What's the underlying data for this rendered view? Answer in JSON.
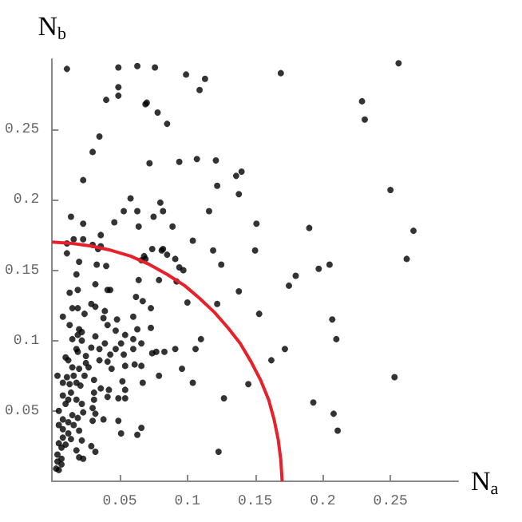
{
  "chart_data": {
    "type": "scatter",
    "xlabel": "N$_{a}$",
    "ylabel": "N$_{b}$",
    "xlim": [
      0,
      0.3
    ],
    "ylim": [
      0,
      0.3
    ],
    "xticks": [
      0.05,
      0.1,
      0.15,
      0.2,
      0.25
    ],
    "yticks": [
      0.05,
      0.1,
      0.15,
      0.2,
      0.25
    ],
    "grid": false,
    "marker": "circle",
    "series": [
      {
        "color": "#000000",
        "x": [
          0.011,
          0.049,
          0.063,
          0.076,
          0.099,
          0.113,
          0.109,
          0.049,
          0.049,
          0.04,
          0.07,
          0.069,
          0.078,
          0.085,
          0.035,
          0.03,
          0.072,
          0.094,
          0.107,
          0.121,
          0.023,
          0.136,
          0.14,
          0.122,
          0.138,
          0.058,
          0.08,
          0.082,
          0.053,
          0.063,
          0.116,
          0.014,
          0.075,
          0.046,
          0.023,
          0.151,
          0.064,
          0.089,
          0.036,
          0.016,
          0.023,
          0.104,
          0.011,
          0.03,
          0.036,
          0.119,
          0.15,
          0.074,
          0.081,
          0.034,
          0.011,
          0.085,
          0.068,
          0.069,
          0.066,
          0.091,
          0.125,
          0.02,
          0.094,
          0.033,
          0.04,
          0.169,
          0.256,
          0.229,
          0.231,
          0.25,
          0.19,
          0.267,
          0.197,
          0.205,
          0.262,
          0.082,
          0.097,
          0.092,
          0.18,
          0.175,
          0.138,
          0.1,
          0.122,
          0.153,
          0.207,
          0.21,
          0.11,
          0.106,
          0.091,
          0.083,
          0.077,
          0.172,
          0.162,
          0.096,
          0.079,
          0.104,
          0.145,
          0.253,
          0.127,
          0.193,
          0.208,
          0.211,
          0.123,
          0.018,
          0.079,
          0.064,
          0.032,
          0.041,
          0.043,
          0.013,
          0.019,
          0.062,
          0.067,
          0.029,
          0.032,
          0.073,
          0.015,
          0.019,
          0.039,
          0.024,
          0.008,
          0.048,
          0.038,
          0.06,
          0.041,
          0.013,
          0.073,
          0.063,
          0.02,
          0.047,
          0.019,
          0.022,
          0.054,
          0.032,
          0.015,
          0.022,
          0.039,
          0.06,
          0.051,
          0.066,
          0.029,
          0.035,
          0.018,
          0.047,
          0.06,
          0.019,
          0.074,
          0.01,
          0.025,
          0.043,
          0.053,
          0.012,
          0.035,
          0.041,
          0.025,
          0.054,
          0.061,
          0.066,
          0.027,
          0.015,
          0.044,
          0.02,
          0.004,
          0.011,
          0.016,
          0.024,
          0.031,
          0.052,
          0.008,
          0.013,
          0.018,
          0.021,
          0.036,
          0.042,
          0.031,
          0.054,
          0.067,
          0.014,
          0.008,
          0.041,
          0.018,
          0.012,
          0.031,
          0.049,
          0.054,
          0.01,
          0.022,
          0.03,
          0.005,
          0.023,
          0.015,
          0.032,
          0.008,
          0.019,
          0.038,
          0.049,
          0.012,
          0.03,
          0.005,
          0.016,
          0.008,
          0.066,
          0.051,
          0.063,
          0.02,
          0.012,
          0.008,
          0.014,
          0.022,
          0.005,
          0.01,
          0.029,
          0.007,
          0.032,
          0.018,
          0.004,
          0.02,
          0.007,
          0.023,
          0.004,
          0.007,
          0.003,
          0.005
        ],
        "values": [
          0.293,
          0.294,
          0.295,
          0.294,
          0.289,
          0.286,
          0.278,
          0.28,
          0.274,
          0.271,
          0.269,
          0.268,
          0.262,
          0.254,
          0.245,
          0.234,
          0.226,
          0.227,
          0.229,
          0.228,
          0.214,
          0.217,
          0.22,
          0.21,
          0.204,
          0.201,
          0.198,
          0.192,
          0.192,
          0.192,
          0.192,
          0.188,
          0.188,
          0.184,
          0.183,
          0.183,
          0.181,
          0.181,
          0.175,
          0.172,
          0.172,
          0.171,
          0.169,
          0.168,
          0.167,
          0.164,
          0.164,
          0.165,
          0.164,
          0.165,
          0.162,
          0.161,
          0.16,
          0.158,
          0.157,
          0.158,
          0.154,
          0.156,
          0.152,
          0.154,
          0.153,
          0.29,
          0.297,
          0.27,
          0.257,
          0.207,
          0.18,
          0.178,
          0.151,
          0.154,
          0.158,
          0.165,
          0.15,
          0.142,
          0.146,
          0.139,
          0.135,
          0.127,
          0.126,
          0.119,
          0.115,
          0.101,
          0.101,
          0.094,
          0.094,
          0.092,
          0.092,
          0.094,
          0.086,
          0.08,
          0.075,
          0.07,
          0.069,
          0.074,
          0.059,
          0.056,
          0.048,
          0.036,
          0.021,
          0.147,
          0.143,
          0.143,
          0.14,
          0.136,
          0.136,
          0.134,
          0.136,
          0.131,
          0.128,
          0.126,
          0.124,
          0.123,
          0.123,
          0.123,
          0.121,
          0.119,
          0.117,
          0.115,
          0.116,
          0.117,
          0.111,
          0.111,
          0.109,
          0.108,
          0.108,
          0.107,
          0.104,
          0.106,
          0.104,
          0.103,
          0.101,
          0.1,
          0.098,
          0.101,
          0.098,
          0.098,
          0.095,
          0.094,
          0.094,
          0.094,
          0.094,
          0.092,
          0.091,
          0.088,
          0.089,
          0.09,
          0.09,
          0.086,
          0.086,
          0.085,
          0.084,
          0.082,
          0.083,
          0.082,
          0.081,
          0.081,
          0.08,
          0.08,
          0.075,
          0.074,
          0.075,
          0.075,
          0.072,
          0.071,
          0.07,
          0.069,
          0.07,
          0.068,
          0.066,
          0.065,
          0.063,
          0.065,
          0.07,
          0.063,
          0.061,
          0.06,
          0.058,
          0.058,
          0.058,
          0.059,
          0.059,
          0.055,
          0.055,
          0.052,
          0.05,
          0.049,
          0.047,
          0.048,
          0.044,
          0.045,
          0.044,
          0.043,
          0.042,
          0.043,
          0.04,
          0.04,
          0.037,
          0.038,
          0.034,
          0.033,
          0.036,
          0.034,
          0.031,
          0.03,
          0.029,
          0.027,
          0.026,
          0.025,
          0.024,
          0.021,
          0.022,
          0.019,
          0.017,
          0.016,
          0.016,
          0.014,
          0.012,
          0.009,
          0.008
        ]
      },
      {
        "type": "line",
        "color": "#e8202a",
        "marker": "none",
        "x": [
          0.17,
          0.169,
          0.167,
          0.164,
          0.16,
          0.154,
          0.147,
          0.139,
          0.13,
          0.12,
          0.109,
          0.098,
          0.085,
          0.072,
          0.058,
          0.044,
          0.03,
          0.015,
          0
        ],
        "values": [
          0,
          0.015,
          0.03,
          0.044,
          0.058,
          0.072,
          0.085,
          0.098,
          0.109,
          0.12,
          0.13,
          0.139,
          0.147,
          0.154,
          0.16,
          0.164,
          0.167,
          0.169,
          0.17
        ]
      }
    ]
  }
}
